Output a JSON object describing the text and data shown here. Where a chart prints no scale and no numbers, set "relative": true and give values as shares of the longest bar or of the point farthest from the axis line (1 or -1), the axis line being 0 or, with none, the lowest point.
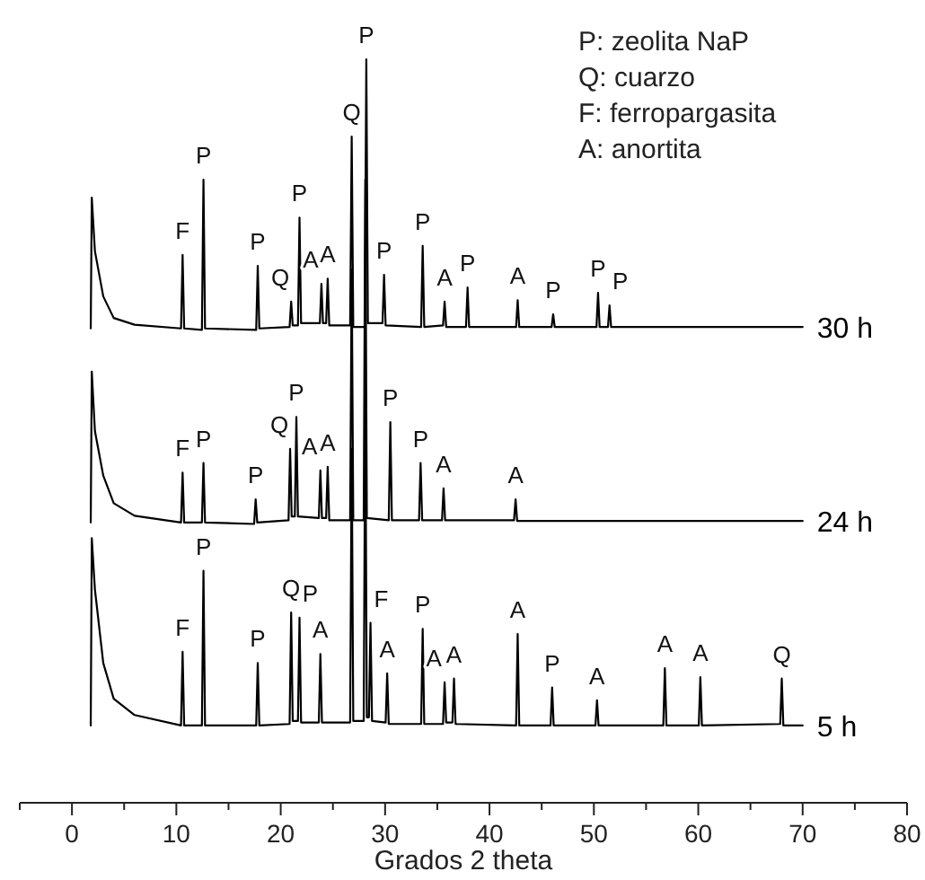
{
  "chart_data": {
    "type": "line",
    "relative": true,
    "xlabel": "Grados 2 theta",
    "legend": false,
    "grid": false,
    "xlim": [
      -5,
      80
    ],
    "xticks": [
      {
        "value": -5,
        "label": null
      },
      0,
      {
        "value": 5,
        "label": null
      },
      10,
      {
        "value": 15,
        "label": null
      },
      20,
      {
        "value": 25,
        "label": null
      },
      30,
      {
        "value": 35,
        "label": null
      },
      40,
      {
        "value": 45,
        "label": null
      },
      50,
      {
        "value": 55,
        "label": null
      },
      60,
      {
        "value": 65,
        "label": null
      },
      70,
      {
        "value": 75,
        "label": null
      },
      80
    ],
    "series": [
      {
        "name": "30 h",
        "color": "#000000",
        "x": [
          1.8,
          1.9,
          2.2,
          3,
          4,
          6,
          10.45,
          10.6,
          10.75,
          12.45,
          12.6,
          12.75,
          17.65,
          17.8,
          17.95,
          20.85,
          21.0,
          21.15,
          21.65,
          21.8,
          21.95,
          23.75,
          23.9,
          24.05,
          24.35,
          24.5,
          24.65,
          26.65,
          26.8,
          26.95,
          28.05,
          28.2,
          28.35,
          29.75,
          29.9,
          30.05,
          33.45,
          33.6,
          33.75,
          35.55,
          35.7,
          35.85,
          37.75,
          37.9,
          38.05,
          42.55,
          42.7,
          42.85,
          45.95,
          46.1,
          46.25,
          50.25,
          50.4,
          50.55,
          51.35,
          51.5,
          51.65,
          70
        ],
        "values": [
          0.638,
          0.814,
          0.742,
          0.681,
          0.652,
          0.643,
          0.638,
          0.737,
          0.638,
          0.636,
          0.838,
          0.638,
          0.636,
          0.722,
          0.638,
          0.64,
          0.674,
          0.642,
          0.642,
          0.787,
          0.645,
          0.645,
          0.698,
          0.645,
          0.645,
          0.705,
          0.642,
          0.642,
          0.896,
          0.64,
          0.64,
          1,
          0.645,
          0.645,
          0.71,
          0.642,
          0.64,
          0.749,
          0.64,
          0.642,
          0.674,
          0.64,
          0.64,
          0.693,
          0.64,
          0.64,
          0.676,
          0.64,
          0.64,
          0.657,
          0.64,
          0.64,
          0.686,
          0.64,
          0.64,
          0.669,
          0.64,
          0.64
        ]
      },
      {
        "name": "24 h",
        "color": "#000000",
        "x": [
          1.8,
          1.9,
          2.2,
          3,
          4,
          6,
          10.45,
          10.6,
          10.75,
          12.45,
          12.6,
          12.75,
          17.45,
          17.6,
          17.75,
          20.75,
          20.9,
          21.05,
          21.35,
          21.5,
          21.65,
          23.65,
          23.8,
          23.95,
          24.35,
          24.5,
          24.65,
          26.65,
          26.8,
          26.95,
          27.95,
          28.1,
          28.25,
          30.35,
          30.5,
          30.65,
          33.25,
          33.4,
          33.55,
          35.45,
          35.6,
          35.75,
          42.35,
          42.5,
          42.65,
          70
        ],
        "values": [
          0.377,
          0.58,
          0.5,
          0.44,
          0.403,
          0.386,
          0.377,
          0.444,
          0.377,
          0.377,
          0.457,
          0.377,
          0.375,
          0.408,
          0.377,
          0.38,
          0.476,
          0.385,
          0.385,
          0.519,
          0.385,
          0.383,
          0.447,
          0.383,
          0.383,
          0.452,
          0.38,
          0.38,
          0.717,
          0.38,
          0.38,
          0.838,
          0.383,
          0.38,
          0.512,
          0.38,
          0.38,
          0.457,
          0.38,
          0.38,
          0.423,
          0.38,
          0.38,
          0.408,
          0.379,
          0.379
        ]
      },
      {
        "name": "5 h",
        "color": "#000000",
        "x": [
          1.8,
          1.9,
          2.2,
          3,
          4,
          6,
          10.45,
          10.6,
          10.75,
          12.45,
          12.6,
          12.75,
          17.65,
          17.8,
          17.95,
          20.85,
          21.0,
          21.15,
          21.65,
          21.8,
          21.95,
          23.65,
          23.8,
          23.95,
          26.65,
          26.8,
          26.95,
          27.95,
          28.1,
          28.25,
          28.45,
          28.6,
          28.75,
          30.05,
          30.2,
          30.35,
          33.45,
          33.6,
          33.75,
          35.55,
          35.7,
          35.85,
          36.45,
          36.6,
          36.75,
          42.55,
          42.7,
          42.85,
          45.85,
          46.0,
          46.15,
          50.15,
          50.3,
          50.45,
          56.65,
          56.8,
          56.95,
          60.05,
          60.2,
          60.35,
          67.85,
          68.0,
          68.15,
          70
        ],
        "values": [
          0.104,
          0.356,
          0.287,
          0.188,
          0.14,
          0.118,
          0.104,
          0.203,
          0.104,
          0.104,
          0.312,
          0.104,
          0.104,
          0.188,
          0.104,
          0.106,
          0.256,
          0.11,
          0.11,
          0.249,
          0.108,
          0.108,
          0.2,
          0.108,
          0.108,
          0.476,
          0.11,
          0.11,
          0.548,
          0.115,
          0.115,
          0.242,
          0.11,
          0.108,
          0.174,
          0.106,
          0.106,
          0.234,
          0.106,
          0.106,
          0.162,
          0.108,
          0.108,
          0.167,
          0.106,
          0.104,
          0.227,
          0.104,
          0.104,
          0.155,
          0.104,
          0.104,
          0.138,
          0.104,
          0.104,
          0.181,
          0.104,
          0.104,
          0.169,
          0.104,
          0.106,
          0.167,
          0.104,
          0.104
        ]
      }
    ],
    "annotations": [
      "P: zeolita NaP",
      "Q: cuarzo",
      "F: ferropargasita",
      "A: anortita",
      {
        "text": "F",
        "x": 10.6,
        "y": 0.737
      },
      {
        "text": "P",
        "x": 12.6,
        "y": 0.838
      },
      {
        "text": "P",
        "x": 17.8,
        "y": 0.722
      },
      {
        "text": "Q",
        "x": 21.0,
        "y": 0.674
      },
      {
        "text": "P",
        "x": 21.8,
        "y": 0.787
      },
      {
        "text": "A",
        "x": 23.9,
        "y": 0.698
      },
      {
        "text": "A",
        "x": 24.5,
        "y": 0.705
      },
      {
        "text": "Q",
        "x": 26.8,
        "y": 0.896
      },
      {
        "text": "P",
        "x": 28.2,
        "y": 1
      },
      {
        "text": "P",
        "x": 29.9,
        "y": 0.71
      },
      {
        "text": "P",
        "x": 33.6,
        "y": 0.749
      },
      {
        "text": "A",
        "x": 35.7,
        "y": 0.674
      },
      {
        "text": "P",
        "x": 37.9,
        "y": 0.693
      },
      {
        "text": "A",
        "x": 42.7,
        "y": 0.676
      },
      {
        "text": "P",
        "x": 46.1,
        "y": 0.657
      },
      {
        "text": "P",
        "x": 50.4,
        "y": 0.686
      },
      {
        "text": "P",
        "x": 51.5,
        "y": 0.669
      },
      {
        "text": "F",
        "x": 10.6,
        "y": 0.444
      },
      {
        "text": "P",
        "x": 12.6,
        "y": 0.457
      },
      {
        "text": "P",
        "x": 17.6,
        "y": 0.408
      },
      {
        "text": "Q",
        "x": 20.9,
        "y": 0.476
      },
      {
        "text": "P",
        "x": 21.5,
        "y": 0.519
      },
      {
        "text": "A",
        "x": 23.8,
        "y": 0.447
      },
      {
        "text": "A",
        "x": 24.5,
        "y": 0.452
      },
      {
        "text": "P",
        "x": 30.5,
        "y": 0.512
      },
      {
        "text": "P",
        "x": 33.4,
        "y": 0.457
      },
      {
        "text": "A",
        "x": 35.6,
        "y": 0.423
      },
      {
        "text": "A",
        "x": 42.5,
        "y": 0.408
      },
      {
        "text": "F",
        "x": 10.6,
        "y": 0.203
      },
      {
        "text": "P",
        "x": 12.6,
        "y": 0.312
      },
      {
        "text": "P",
        "x": 17.8,
        "y": 0.188
      },
      {
        "text": "Q",
        "x": 21.0,
        "y": 0.256
      },
      {
        "text": "P",
        "x": 21.8,
        "y": 0.249
      },
      {
        "text": "A",
        "x": 23.8,
        "y": 0.2
      },
      {
        "text": "F",
        "x": 28.6,
        "y": 0.242
      },
      {
        "text": "A",
        "x": 30.2,
        "y": 0.174
      },
      {
        "text": "P",
        "x": 33.6,
        "y": 0.234
      },
      {
        "text": "A",
        "x": 35.7,
        "y": 0.162
      },
      {
        "text": "A",
        "x": 36.6,
        "y": 0.167
      },
      {
        "text": "A",
        "x": 42.7,
        "y": 0.227
      },
      {
        "text": "P",
        "x": 46.0,
        "y": 0.155
      },
      {
        "text": "A",
        "x": 50.3,
        "y": 0.138
      },
      {
        "text": "A",
        "x": 56.8,
        "y": 0.181
      },
      {
        "text": "A",
        "x": 60.2,
        "y": 0.169
      },
      {
        "text": "Q",
        "x": 68.0,
        "y": 0.167
      }
    ]
  }
}
